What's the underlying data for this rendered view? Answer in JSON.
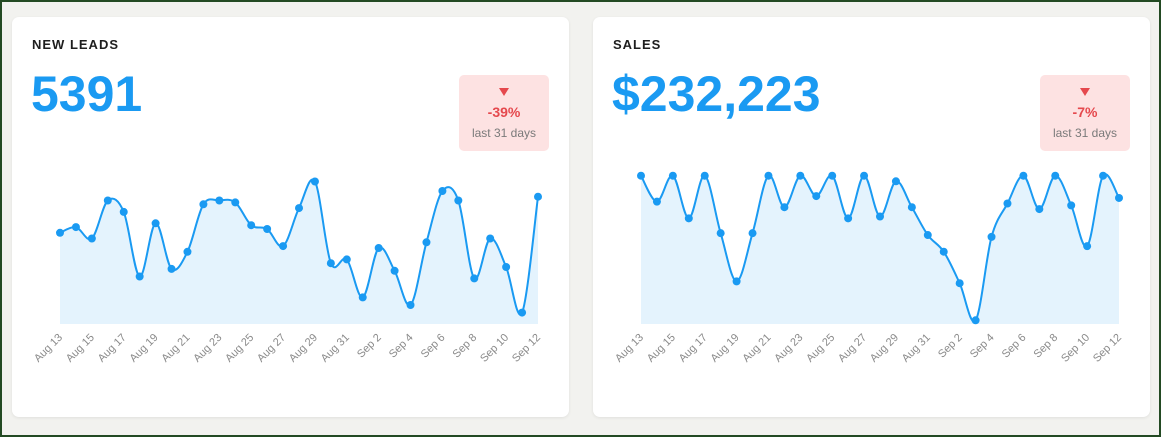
{
  "colors": {
    "accent": "#1a9af2",
    "area_fill": "#e4f3fd",
    "negative": "#e5484d",
    "badge_bg": "#fde2e2"
  },
  "cards": [
    {
      "title": "NEW LEADS",
      "value": "5391",
      "delta": {
        "icon": "triangle-down-icon",
        "percent": "-39%",
        "period": "last 31 days"
      }
    },
    {
      "title": "SALES",
      "value": "$232,223",
      "delta": {
        "icon": "triangle-down-icon",
        "percent": "-7%",
        "period": "last 31 days"
      }
    }
  ],
  "chart_data": [
    {
      "type": "area",
      "title": "",
      "xlabel": "",
      "ylabel": "",
      "grid": false,
      "tick_labels": [
        "Aug 13",
        "Aug 15",
        "Aug 17",
        "Aug 19",
        "Aug 21",
        "Aug 23",
        "Aug 25",
        "Aug 27",
        "Aug 29",
        "Aug 31",
        "Sep 2",
        "Sep 4",
        "Sep 6",
        "Sep 8",
        "Sep 10",
        "Sep 12"
      ],
      "x": [
        "Aug 13",
        "Aug 14",
        "Aug 15",
        "Aug 16",
        "Aug 17",
        "Aug 18",
        "Aug 19",
        "Aug 20",
        "Aug 21",
        "Aug 22",
        "Aug 23",
        "Aug 24",
        "Aug 25",
        "Aug 26",
        "Aug 27",
        "Aug 28",
        "Aug 29",
        "Aug 30",
        "Aug 31",
        "Sep 1",
        "Sep 2",
        "Sep 3",
        "Sep 4",
        "Sep 5",
        "Sep 6",
        "Sep 7",
        "Sep 8",
        "Sep 9",
        "Sep 10",
        "Sep 11",
        "Sep 12"
      ],
      "series": [
        {
          "values": [
            240,
            255,
            225,
            325,
            295,
            125,
            265,
            145,
            190,
            315,
            325,
            320,
            260,
            250,
            205,
            305,
            375,
            160,
            170,
            70,
            200,
            140,
            50,
            215,
            350,
            325,
            120,
            225,
            150,
            30,
            335
          ]
        }
      ],
      "ylim": [
        0,
        400
      ]
    },
    {
      "type": "area",
      "title": "",
      "xlabel": "",
      "ylabel": "",
      "grid": false,
      "tick_labels": [
        "Aug 13",
        "Aug 15",
        "Aug 17",
        "Aug 19",
        "Aug 21",
        "Aug 23",
        "Aug 25",
        "Aug 27",
        "Aug 29",
        "Aug 31",
        "Sep 2",
        "Sep 4",
        "Sep 6",
        "Sep 8",
        "Sep 10",
        "Sep 12"
      ],
      "x": [
        "Aug 13",
        "Aug 14",
        "Aug 15",
        "Aug 16",
        "Aug 17",
        "Aug 18",
        "Aug 19",
        "Aug 20",
        "Aug 21",
        "Aug 22",
        "Aug 23",
        "Aug 24",
        "Aug 25",
        "Aug 26",
        "Aug 27",
        "Aug 28",
        "Aug 29",
        "Aug 30",
        "Aug 31",
        "Sep 1",
        "Sep 2",
        "Sep 3",
        "Sep 4",
        "Sep 5",
        "Sep 6",
        "Sep 7",
        "Sep 8",
        "Sep 9",
        "Sep 10",
        "Sep 11",
        "Sep 12"
      ],
      "series": [
        {
          "values": [
            400,
            330,
            400,
            285,
            400,
            245,
            115,
            245,
            400,
            315,
            400,
            345,
            400,
            285,
            400,
            290,
            385,
            315,
            240,
            195,
            110,
            10,
            235,
            325,
            400,
            310,
            400,
            320,
            210,
            400,
            340
          ]
        }
      ],
      "ylim": [
        0,
        410
      ]
    }
  ]
}
